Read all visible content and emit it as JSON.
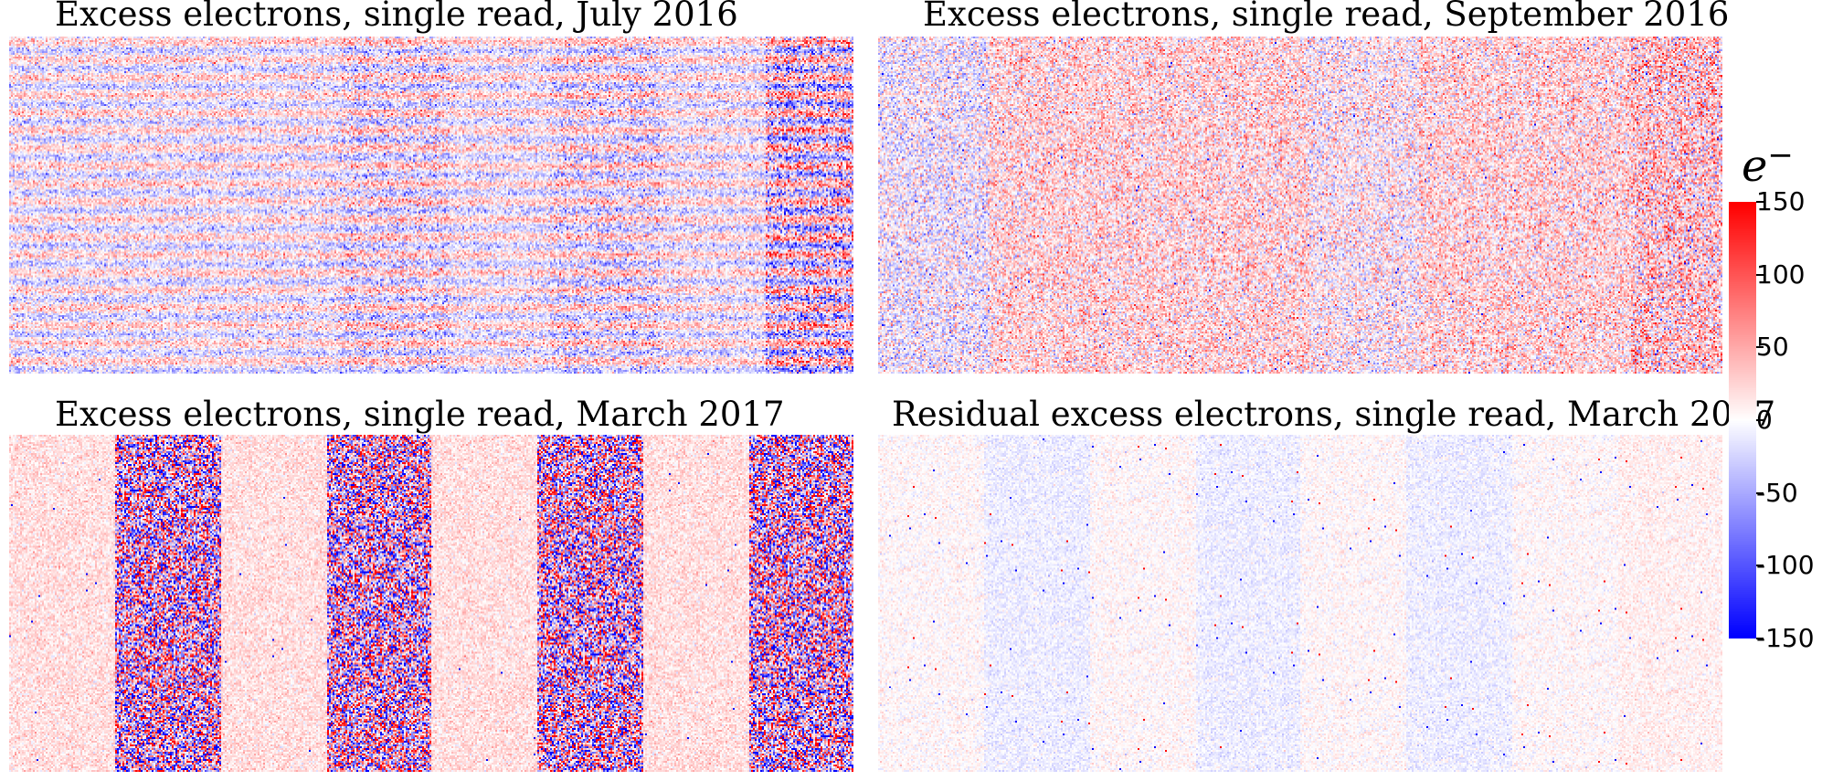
{
  "chart_data": [
    {
      "type": "heatmap",
      "title": "Excess electrons, single read, July 2016",
      "pattern": "horizontal stripes with alternating red/blue rows; stronger noise in rightmost column band",
      "zlim": [
        -150,
        150
      ]
    },
    {
      "type": "heatmap",
      "title": "Excess electrons, single read, September 2016",
      "pattern": "mottled mostly red noise with slightly bluer column bands",
      "zlim": [
        -150,
        150
      ]
    },
    {
      "type": "heatmap",
      "title": "Excess electrons, single read, March 2017",
      "pattern": "eight vertical bands alternating light red and strong red/blue noise",
      "zlim": [
        -150,
        150
      ]
    },
    {
      "type": "heatmap",
      "title": "Residual excess electrons, single read, March 2017",
      "pattern": "near-zero residual, faint blue bands, scattered outlier pixels",
      "zlim": [
        -150,
        150
      ]
    }
  ],
  "colorbar": {
    "unit": "e",
    "unit_sup": "−",
    "ticks": [
      "150",
      "100",
      "50",
      "0",
      "-50",
      "-100",
      "-150"
    ],
    "tick_values": [
      150,
      100,
      50,
      0,
      -50,
      -100,
      -150
    ],
    "colors": {
      "high": "#ff0000",
      "mid": "#ffffff",
      "low": "#0000ff"
    }
  }
}
